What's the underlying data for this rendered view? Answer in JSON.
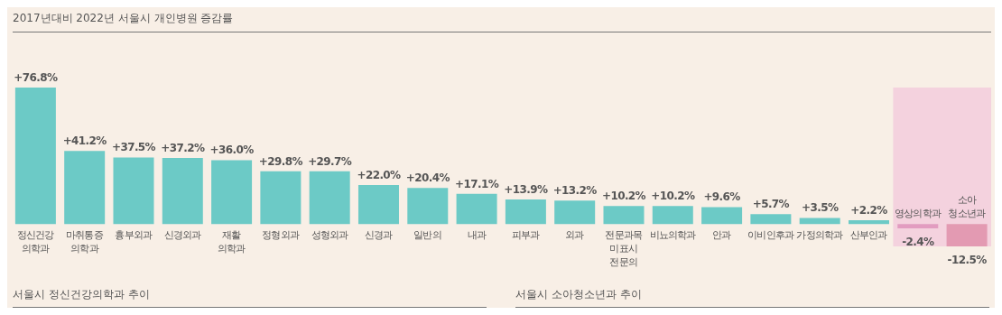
{
  "chart_data": {
    "type": "bar",
    "title": "2017년대비 2022년 서울시 개인병원 증감률",
    "categories": [
      "정신건강\n의학과",
      "마취통증\n의학과",
      "흉부외과",
      "신경외과",
      "재활\n의학과",
      "정형외과",
      "성형외과",
      "신경과",
      "일반의",
      "내과",
      "피부과",
      "외과",
      "전문과목\n미표시\n전문의",
      "비뇨의학과",
      "안과",
      "이비인후과",
      "가정의학과",
      "산부인과",
      "영상의학과",
      "소아\n청소년과"
    ],
    "values": [
      76.8,
      41.2,
      37.5,
      37.2,
      36.0,
      29.8,
      29.7,
      22.0,
      20.4,
      17.1,
      13.9,
      13.2,
      10.2,
      10.2,
      9.6,
      5.7,
      3.5,
      2.2,
      -2.4,
      -12.5
    ],
    "colors": [
      "#6ccac6",
      "#6ccac6",
      "#6ccac6",
      "#6ccac6",
      "#6ccac6",
      "#6ccac6",
      "#6ccac6",
      "#6ccac6",
      "#6ccac6",
      "#6ccac6",
      "#6ccac6",
      "#6ccac6",
      "#6ccac6",
      "#6ccac6",
      "#6ccac6",
      "#6ccac6",
      "#6ccac6",
      "#6ccac6",
      "#e29cc0",
      "#e39ab2"
    ],
    "value_labels": [
      "+76.8%",
      "+41.2%",
      "+37.5%",
      "+37.2%",
      "+36.0%",
      "+29.8%",
      "+29.7%",
      "+22.0%",
      "+20.4%",
      "+17.1%",
      "+13.9%",
      "+13.2%",
      "+10.2%",
      "+10.2%",
      "+9.6%",
      "+5.7%",
      "+3.5%",
      "+2.2%",
      "-2.4%",
      "-12.5%"
    ],
    "bands": [
      {
        "axis": "x",
        "from": "영상의학과",
        "to": "소아\n청소년과",
        "color": "#f4d2de"
      }
    ],
    "annotations": [
      "서울시 정신건강의학과 추이",
      "서울시 소아청소년과 추이"
    ]
  }
}
